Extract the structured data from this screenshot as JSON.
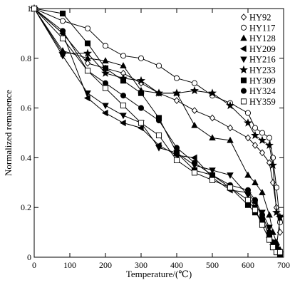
{
  "chart_data": {
    "type": "line",
    "xlabel": "Temperature/(℃)",
    "ylabel": "Normalized remanence",
    "xlim": [
      0,
      700
    ],
    "ylim": [
      0,
      1
    ],
    "xticks": [
      0,
      100,
      200,
      300,
      400,
      500,
      600,
      700
    ],
    "xtick_labels": [
      "0",
      "100",
      "200",
      "300",
      "400",
      "500",
      "600",
      "700"
    ],
    "yticks": [
      0,
      0.2,
      0.4,
      0.6,
      0.8,
      1
    ],
    "ytick_labels": [
      "0",
      "0.2",
      "0.4",
      "0.6",
      "0.8",
      "1"
    ],
    "grid": false,
    "legend_position": "top-right",
    "series": [
      {
        "name": "HY92",
        "marker": "diamond-open",
        "x": [
          0,
          80,
          150,
          200,
          250,
          300,
          350,
          400,
          450,
          500,
          550,
          600,
          620,
          640,
          660,
          670,
          680,
          690
        ],
        "y": [
          1,
          0.9,
          0.78,
          0.76,
          0.74,
          0.7,
          0.66,
          0.63,
          0.59,
          0.56,
          0.52,
          0.48,
          0.45,
          0.42,
          0.38,
          0.3,
          0.2,
          0.1
        ]
      },
      {
        "name": "HY117",
        "marker": "circle-open",
        "x": [
          0,
          80,
          150,
          200,
          250,
          300,
          350,
          400,
          450,
          500,
          550,
          600,
          620,
          640,
          660,
          670,
          680,
          690
        ],
        "y": [
          1,
          0.95,
          0.92,
          0.85,
          0.81,
          0.8,
          0.77,
          0.72,
          0.7,
          0.65,
          0.62,
          0.58,
          0.52,
          0.5,
          0.48,
          0.4,
          0.28,
          0.14
        ]
      },
      {
        "name": "HY128",
        "marker": "triangle-up-filled",
        "x": [
          0,
          80,
          150,
          200,
          250,
          300,
          350,
          400,
          450,
          500,
          550,
          600,
          620,
          640,
          660,
          670,
          680,
          690
        ],
        "y": [
          1,
          0.83,
          0.8,
          0.79,
          0.77,
          0.67,
          0.66,
          0.66,
          0.53,
          0.48,
          0.47,
          0.33,
          0.3,
          0.26,
          0.17,
          0.1,
          0.06,
          0.03
        ]
      },
      {
        "name": "HY209",
        "marker": "triangle-left-filled",
        "x": [
          0,
          80,
          150,
          200,
          250,
          300,
          350,
          400,
          450,
          500,
          550,
          600,
          620,
          640,
          660,
          670,
          680,
          690
        ],
        "y": [
          1,
          0.9,
          0.64,
          0.58,
          0.54,
          0.52,
          0.45,
          0.41,
          0.4,
          0.32,
          0.27,
          0.26,
          0.22,
          0.16,
          0.08,
          0.05,
          0.03,
          0.02
        ]
      },
      {
        "name": "HY216",
        "marker": "triangle-down-filled",
        "x": [
          0,
          80,
          150,
          200,
          250,
          300,
          350,
          400,
          450,
          500,
          550,
          600,
          620,
          640,
          660,
          670,
          680,
          690
        ],
        "y": [
          1,
          0.81,
          0.66,
          0.61,
          0.57,
          0.54,
          0.44,
          0.42,
          0.37,
          0.35,
          0.33,
          0.25,
          0.2,
          0.18,
          0.12,
          0.06,
          0.04,
          0.16
        ]
      },
      {
        "name": "HY233",
        "marker": "star-filled",
        "x": [
          0,
          80,
          150,
          200,
          250,
          300,
          350,
          400,
          450,
          500,
          550,
          600,
          620,
          640,
          660,
          670,
          680,
          690
        ],
        "y": [
          1,
          0.82,
          0.82,
          0.74,
          0.72,
          0.71,
          0.66,
          0.66,
          0.67,
          0.66,
          0.61,
          0.54,
          0.49,
          0.47,
          0.45,
          0.37,
          0.18,
          0.16
        ]
      },
      {
        "name": "HY309",
        "marker": "square-filled",
        "x": [
          0,
          80,
          150,
          200,
          250,
          300,
          350,
          400,
          450,
          500,
          550,
          600,
          620,
          640,
          660,
          670,
          680,
          690
        ],
        "y": [
          1,
          0.98,
          0.86,
          0.76,
          0.71,
          0.66,
          0.56,
          0.42,
          0.35,
          0.33,
          0.28,
          0.21,
          0.18,
          0.15,
          0.09,
          0.04,
          0.02,
          0.01
        ]
      },
      {
        "name": "HY324",
        "marker": "circle-filled",
        "x": [
          0,
          80,
          150,
          200,
          250,
          300,
          350,
          400,
          450,
          500,
          550,
          600,
          620,
          640,
          660,
          670,
          680,
          690
        ],
        "y": [
          1,
          0.91,
          0.75,
          0.7,
          0.65,
          0.6,
          0.55,
          0.44,
          0.38,
          0.33,
          0.29,
          0.27,
          0.23,
          0.17,
          0.1,
          0.06,
          0.03,
          0.02
        ]
      },
      {
        "name": "HY359",
        "marker": "square-open",
        "x": [
          0,
          80,
          150,
          200,
          250,
          300,
          350,
          400,
          450,
          500,
          550,
          600,
          620,
          640,
          660,
          670,
          680,
          690
        ],
        "y": [
          1,
          0.88,
          0.75,
          0.68,
          0.61,
          0.54,
          0.49,
          0.39,
          0.34,
          0.31,
          0.28,
          0.23,
          0.19,
          0.13,
          0.07,
          0.04,
          0.02,
          0.02
        ]
      }
    ]
  }
}
